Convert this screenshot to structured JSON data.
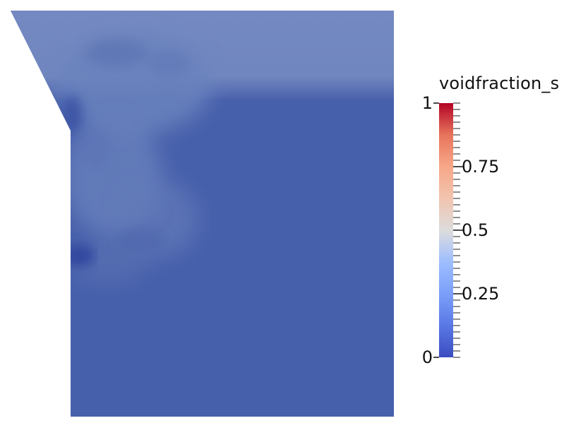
{
  "colorbar": {
    "title": "voidfraction_s",
    "range": [
      0,
      1
    ],
    "colormap": "cool-to-warm",
    "colors": {
      "low": "#3b4cc0",
      "mid": "#dddddd",
      "high": "#b40426"
    },
    "tick_labels": [
      {
        "value": 0,
        "text": "0"
      },
      {
        "value": 0.25,
        "text": "0.25"
      },
      {
        "value": 0.5,
        "text": "0.5"
      },
      {
        "value": 0.75,
        "text": "0.75"
      },
      {
        "value": 1,
        "text": "1"
      }
    ]
  },
  "field": {
    "base_color": "#4760ab",
    "upper_band_color": "#7089c0"
  }
}
